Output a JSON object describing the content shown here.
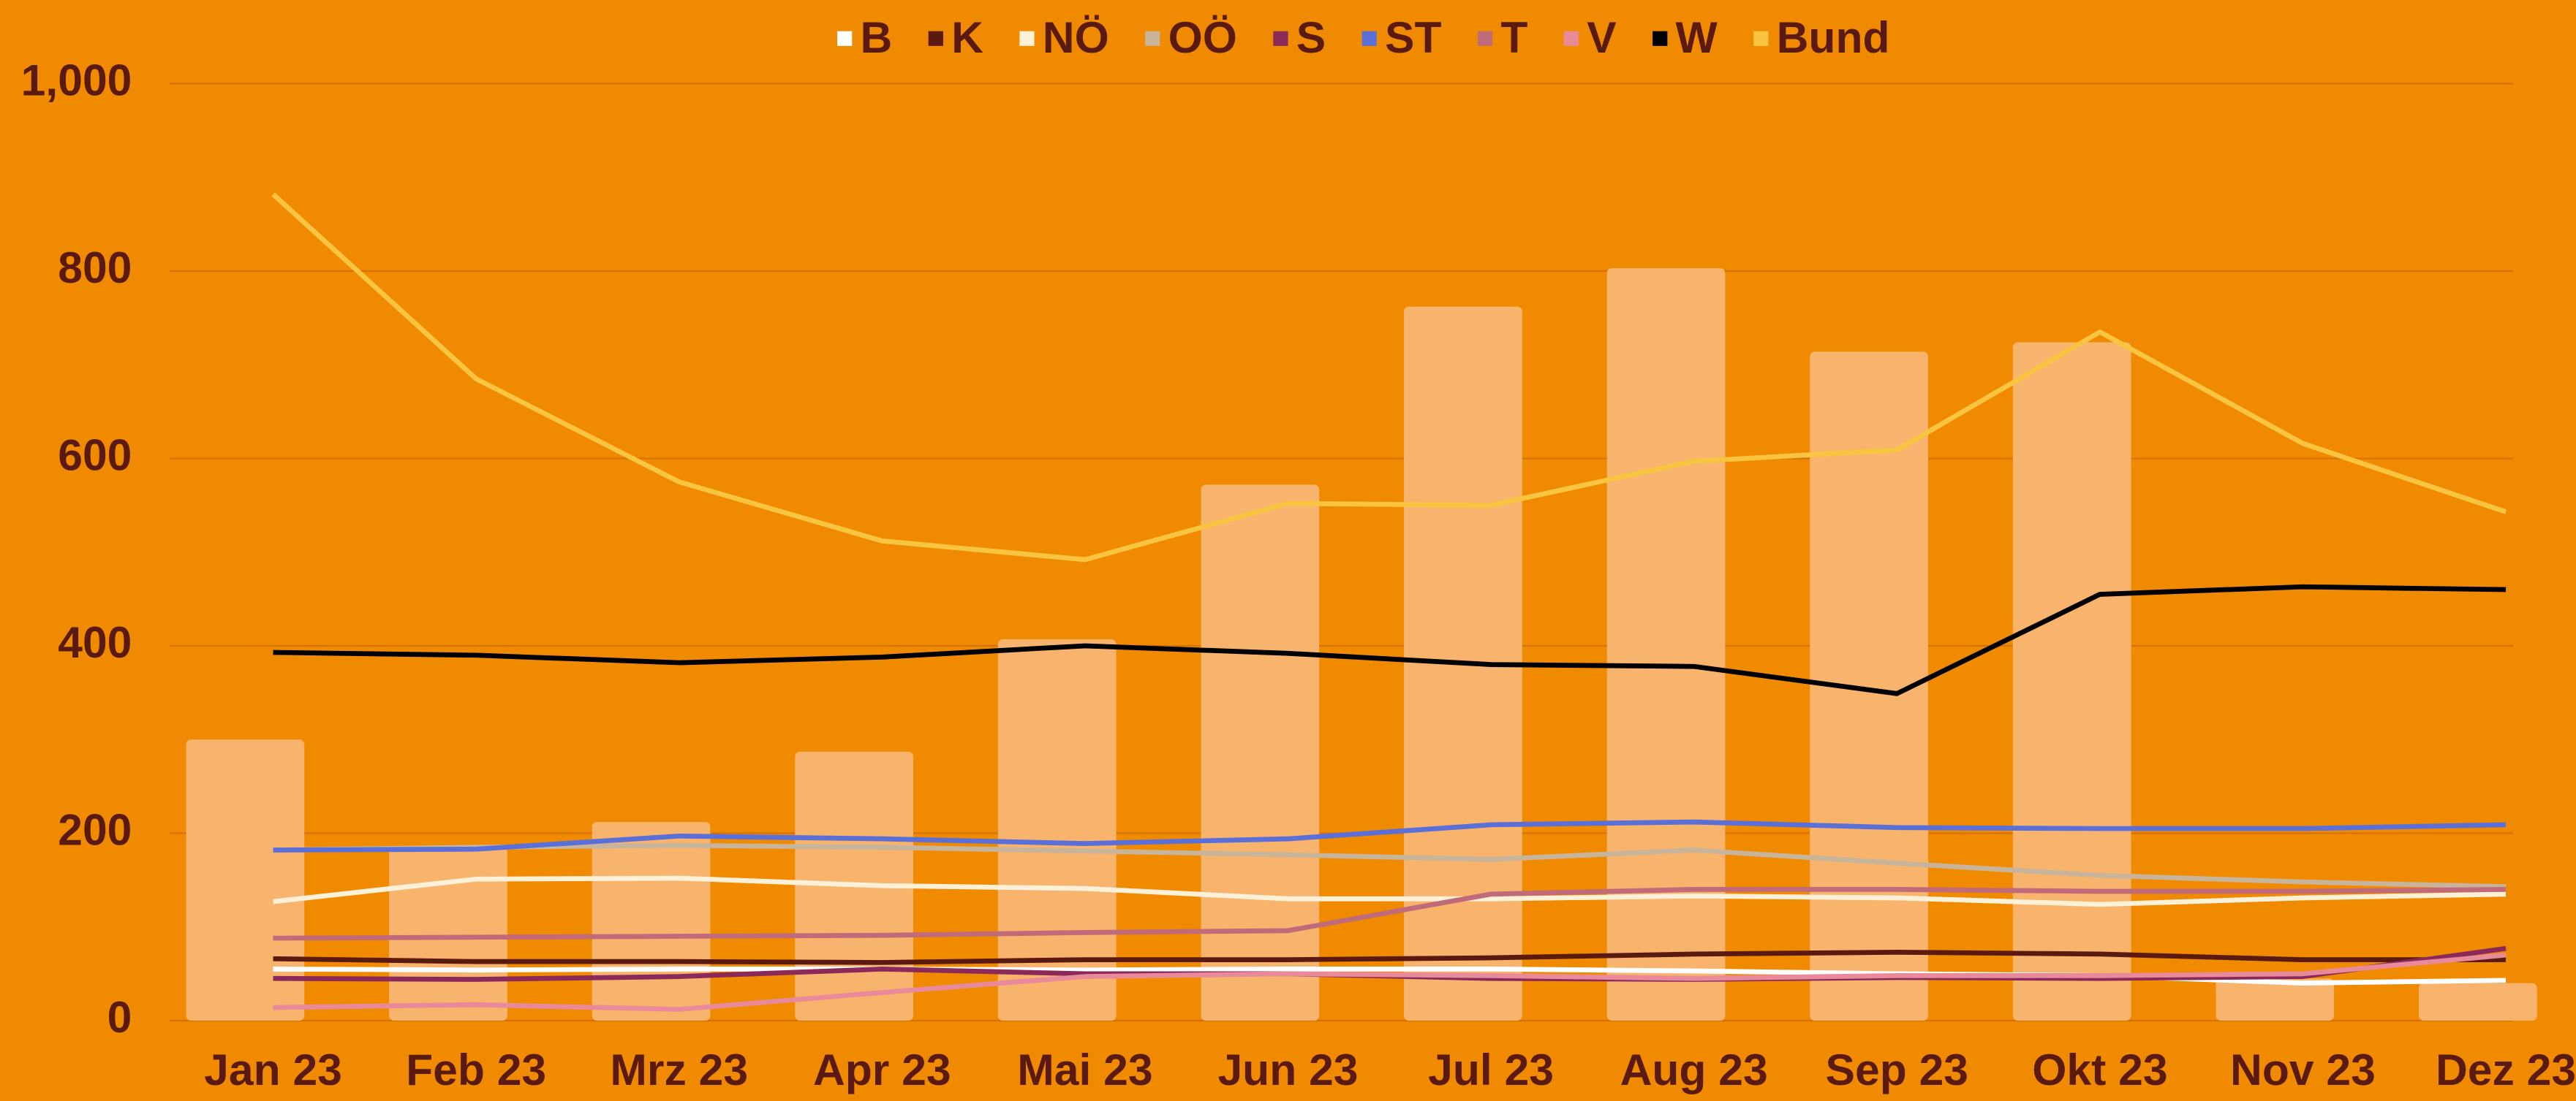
{
  "chart_data": {
    "type": "bar",
    "categories": [
      "Jan 23",
      "Feb 23",
      "Mrz 23",
      "Apr 23",
      "Mai 23",
      "Jun 23",
      "Jul 23",
      "Aug 23",
      "Sep 23",
      "Okt 23",
      "Nov 23",
      "Dez 23"
    ],
    "ylim": [
      0,
      1000
    ],
    "yticks": [
      0,
      200,
      400,
      600,
      800,
      {
        "value": 1000,
        "label": "1,000"
      }
    ],
    "grid": true,
    "legend": "top",
    "series": [
      {
        "type": "bar",
        "color": "#f8b36c",
        "values": [
          300,
          185,
          212,
          287,
          407,
          572,
          762,
          803,
          714,
          724,
          45,
          40
        ]
      },
      {
        "name": "B",
        "type": "line",
        "color": "#ffffff",
        "values": [
          55,
          54,
          55,
          55,
          54,
          55,
          55,
          53,
          50,
          48,
          40,
          43
        ]
      },
      {
        "name": "K",
        "type": "line",
        "color": "#5a1a10",
        "values": [
          66,
          63,
          63,
          62,
          65,
          65,
          67,
          71,
          73,
          71,
          65,
          65
        ]
      },
      {
        "name": "NÖ",
        "type": "line",
        "color": "#fff0d8",
        "values": [
          127,
          151,
          152,
          144,
          141,
          130,
          130,
          133,
          131,
          124,
          131,
          135
        ]
      },
      {
        "name": "OÖ",
        "type": "line",
        "color": "#c8b49a",
        "values": [
          182,
          185,
          187,
          185,
          181,
          177,
          172,
          182,
          168,
          155,
          148,
          143
        ]
      },
      {
        "name": "S",
        "type": "line",
        "color": "#8b2a5a",
        "values": [
          45,
          44,
          47,
          55,
          50,
          50,
          45,
          44,
          46,
          45,
          47,
          77
        ]
      },
      {
        "name": "ST",
        "type": "line",
        "color": "#5b6fd8",
        "values": [
          182,
          183,
          197,
          194,
          189,
          194,
          209,
          212,
          206,
          205,
          205,
          209
        ]
      },
      {
        "name": "T",
        "type": "line",
        "color": "#c06a7a",
        "values": [
          88,
          89,
          90,
          91,
          94,
          96,
          135,
          140,
          140,
          138,
          138,
          140
        ]
      },
      {
        "name": "V",
        "type": "line",
        "color": "#e88a9a",
        "values": [
          14,
          17,
          12,
          30,
          47,
          50,
          48,
          45,
          48,
          48,
          50,
          70
        ]
      },
      {
        "name": "W",
        "type": "line",
        "color": "#000000",
        "values": [
          393,
          390,
          382,
          388,
          400,
          392,
          380,
          378,
          349,
          455,
          463,
          460
        ]
      },
      {
        "name": "Bund",
        "type": "line",
        "color": "#f9c440",
        "values": [
          882,
          685,
          575,
          512,
          492,
          552,
          550,
          597,
          609,
          735,
          616,
          543
        ]
      }
    ]
  }
}
